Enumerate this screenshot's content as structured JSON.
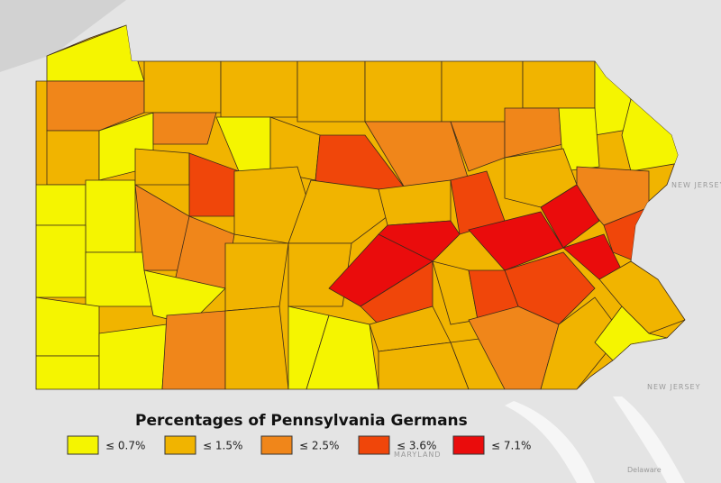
{
  "title": "Percentages of Pennsylvania Germans",
  "legend": [
    {
      "label": "≤ 0.7%",
      "color": "#f5f500"
    },
    {
      "label": "≤ 1.5%",
      "color": "#f1b400"
    },
    {
      "label": "≤ 2.5%",
      "color": "#f0861a"
    },
    {
      "label": "≤ 3.6%",
      "color": "#f0460a"
    },
    {
      "label": "≤ 7.1%",
      "color": "#ea0c0c"
    }
  ],
  "map_labels": [
    "NEW JERSEY",
    "NEW JERSEY",
    "MARYLAND",
    "Delaware"
  ]
}
